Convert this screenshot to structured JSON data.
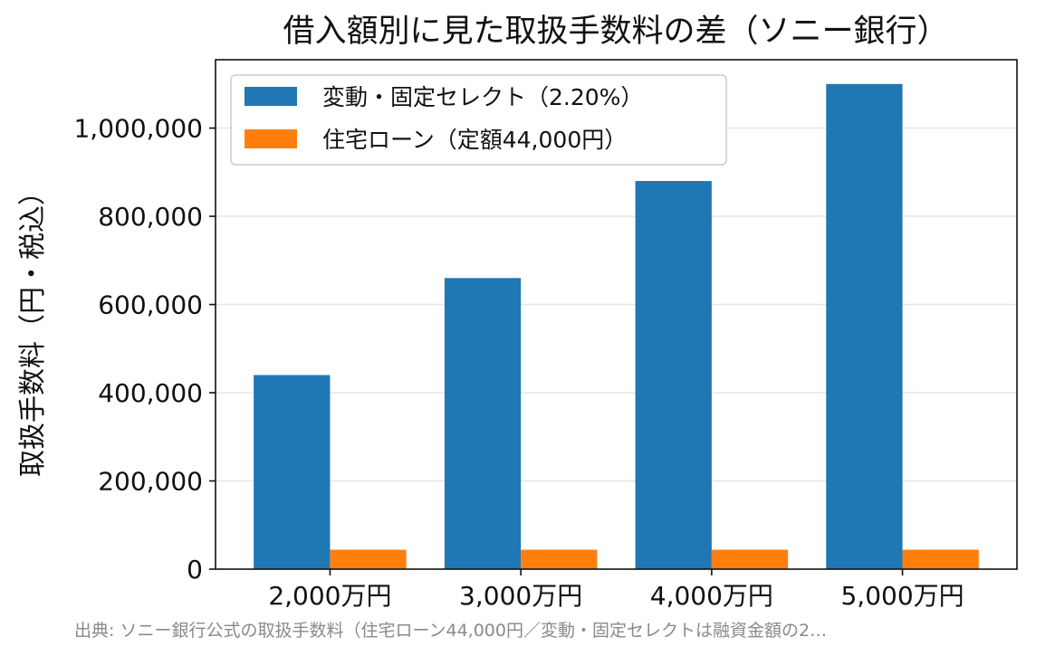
{
  "chart_data": {
    "type": "bar",
    "title": "借入額別に見た取扱手数料の差（ソニー銀行）",
    "xlabel": "",
    "ylabel": "取扱手数料（円・税込）",
    "categories": [
      "2,000万円",
      "3,000万円",
      "4,000万円",
      "5,000万円"
    ],
    "series": [
      {
        "name": "変動・固定セレクト（2.20%）",
        "values": [
          440000,
          660000,
          880000,
          1100000
        ],
        "color": "#1f77b4"
      },
      {
        "name": "住宅ローン（定額44,000円）",
        "values": [
          44000,
          44000,
          44000,
          44000
        ],
        "color": "#ff7f0e"
      }
    ],
    "ylim": [
      0,
      1155000
    ],
    "yticks": [
      0,
      200000,
      400000,
      600000,
      800000,
      1000000
    ],
    "ytick_labels": [
      "0",
      "200,000",
      "400,000",
      "600,000",
      "800,000",
      "1,000,000"
    ],
    "grid": "horizontal",
    "legend_position": "upper-left",
    "source_note": "出典: ソニー銀行公式の取扱手数料（住宅ローン44,000円／変動・固定セレクトは融資金額の2…"
  }
}
